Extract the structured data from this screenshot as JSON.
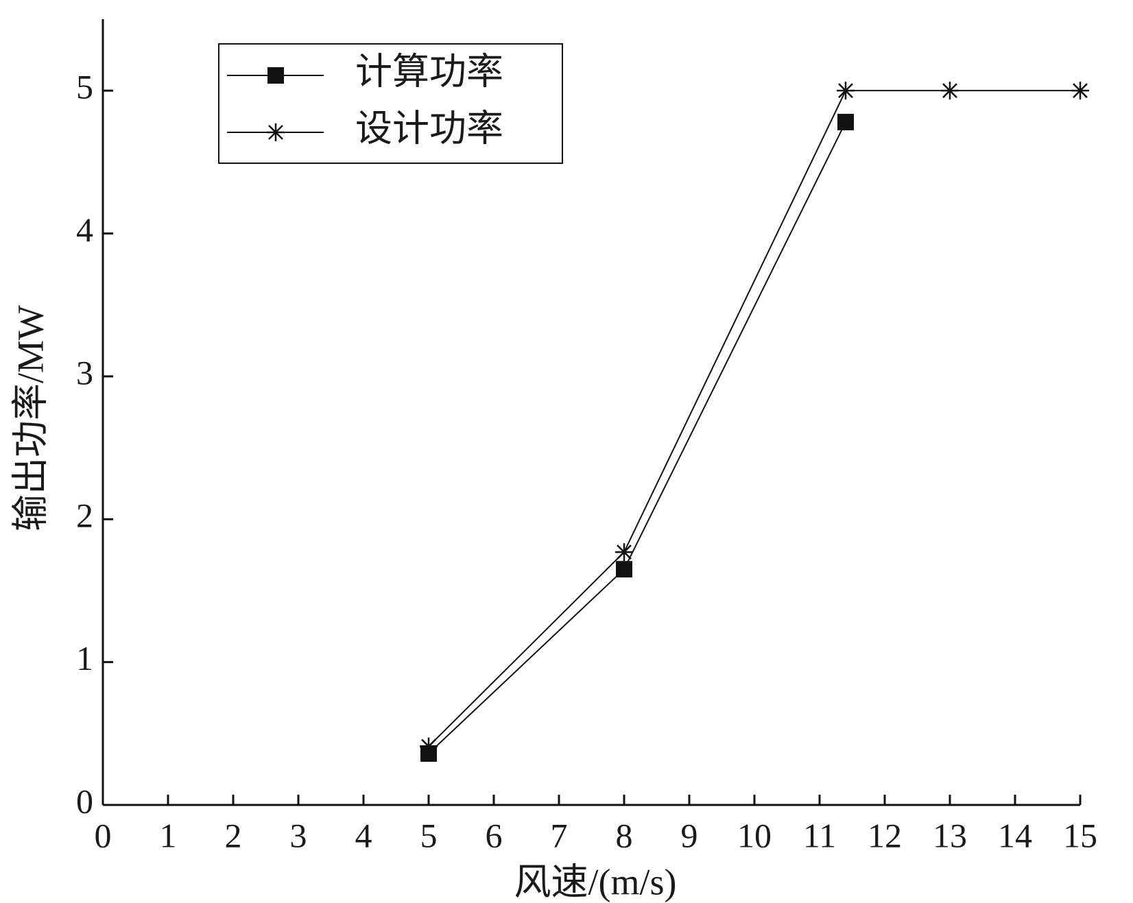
{
  "chart_data": {
    "type": "line",
    "x_label": "风速/(m/s)",
    "y_label": "输出功率/MW",
    "xlim": [
      0,
      15
    ],
    "xticks": [
      0,
      1,
      2,
      3,
      4,
      5,
      6,
      7,
      8,
      9,
      10,
      11,
      12,
      13,
      14,
      15
    ],
    "ylim": [
      0,
      5.5
    ],
    "yticks": [
      0,
      1,
      2,
      3,
      4,
      5
    ],
    "legend": "upper-left",
    "series": [
      {
        "name": "计算功率",
        "color": "#111111",
        "marker": "square",
        "x": [
          5,
          8,
          11.4
        ],
        "values": [
          0.36,
          1.65,
          4.78
        ]
      },
      {
        "name": "设计功率",
        "color": "#111111",
        "marker": "asterisk",
        "x": [
          5,
          8,
          11.4,
          13,
          15
        ],
        "values": [
          0.41,
          1.77,
          5.0,
          5.0,
          5.0
        ]
      }
    ]
  }
}
